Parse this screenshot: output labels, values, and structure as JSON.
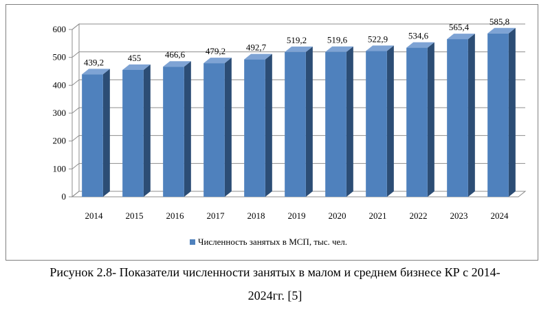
{
  "chart_data": {
    "type": "bar",
    "categories": [
      "2014",
      "2015",
      "2016",
      "2017",
      "2018",
      "2019",
      "2020",
      "2021",
      "2022",
      "2023",
      "2024"
    ],
    "series": [
      {
        "name": "Численность занятых в МСП, тыс. чел.",
        "values": [
          439.2,
          455,
          466.6,
          479.2,
          492.7,
          519.2,
          519.6,
          522.9,
          534.6,
          565.4,
          585.8
        ],
        "labels": [
          "439,2",
          "455",
          "466,6",
          "479,2",
          "492,7",
          "519,2",
          "519,6",
          "522,9",
          "534,6",
          "565,4",
          "585,8"
        ]
      }
    ],
    "yticks": [
      "0",
      "100",
      "200",
      "300",
      "400",
      "500",
      "600"
    ],
    "ylim": [
      0,
      600
    ],
    "grid": true,
    "style_3d": true,
    "legend_position": "bottom",
    "colors": {
      "bar_front": "#4f81bd",
      "bar_side": "#2c4d75",
      "bar_top": "#7ea3d4"
    }
  },
  "caption": {
    "line1": "Рисунок 2.8- Показатели численности занятых в малом и среднем бизнесе КР с 2014-",
    "line2": "2024гг. [5]"
  }
}
